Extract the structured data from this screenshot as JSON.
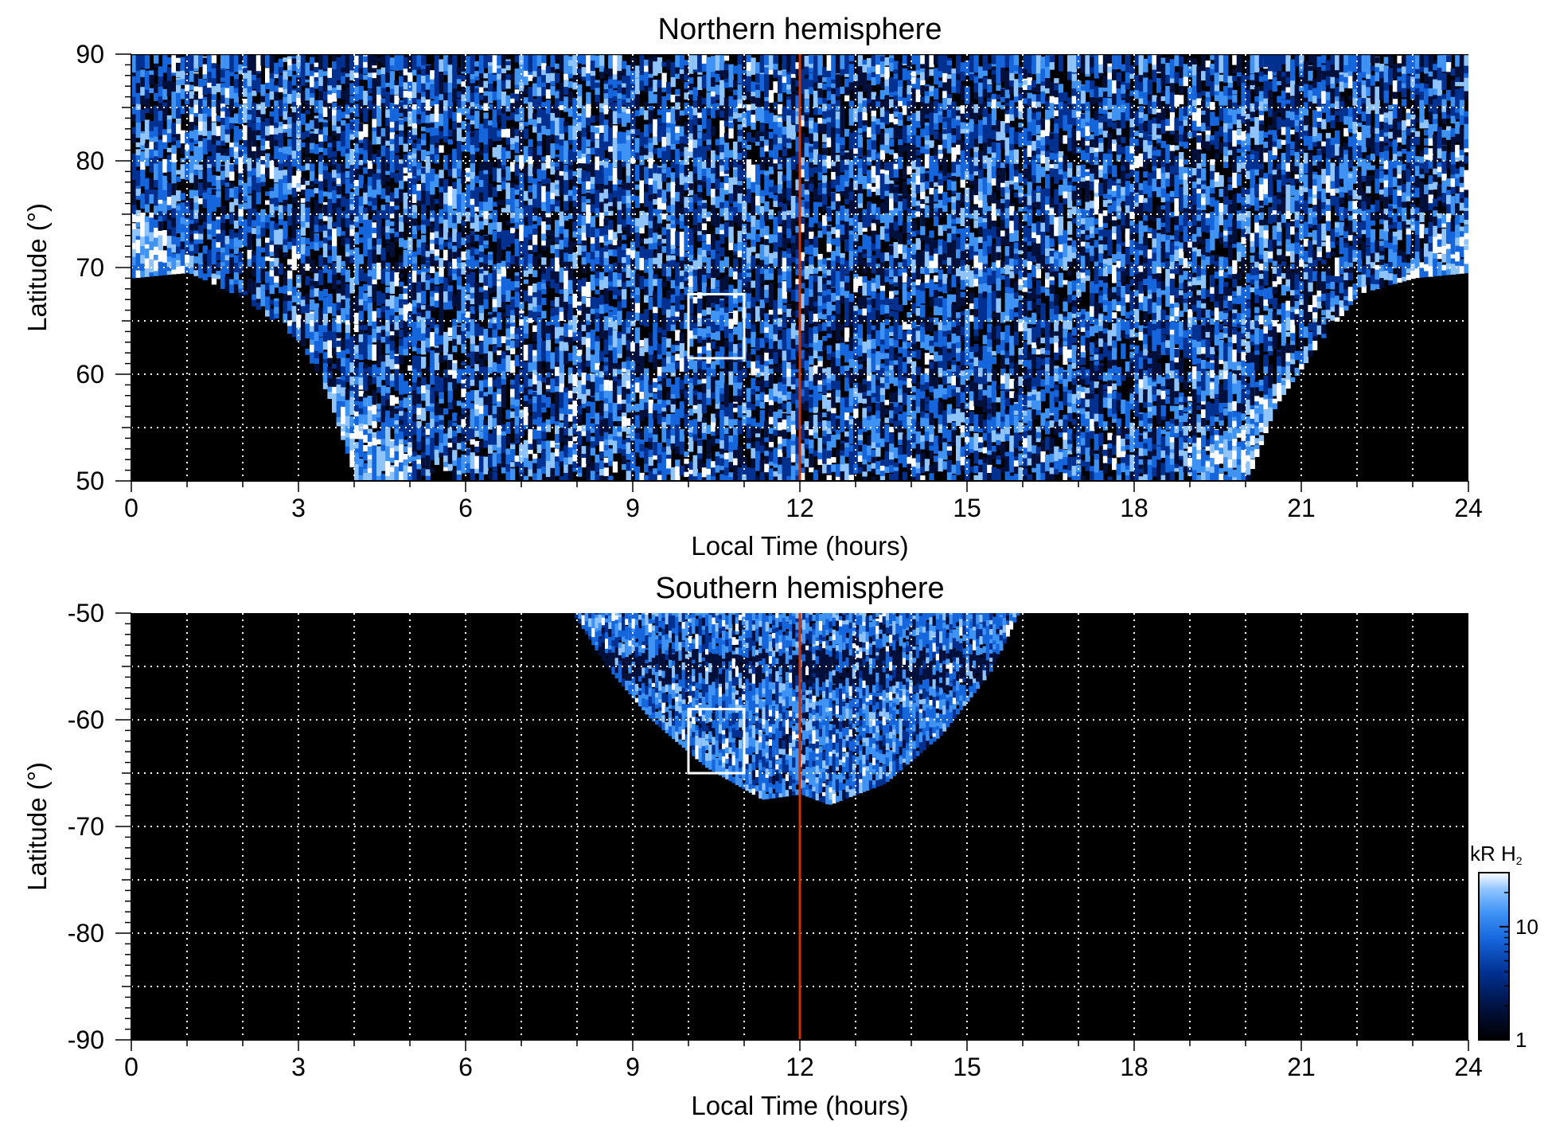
{
  "chart_data": [
    {
      "type": "heatmap",
      "title": "Northern hemisphere",
      "xlabel": "Local Time (hours)",
      "ylabel": "Latitude (°)",
      "xlim": [
        0,
        24
      ],
      "ylim": [
        50,
        90
      ],
      "xticks": [
        "0",
        "3",
        "6",
        "9",
        "12",
        "15",
        "18",
        "21",
        "24"
      ],
      "yticks": [
        "50",
        "60",
        "70",
        "80",
        "90"
      ],
      "grid": true,
      "reference_line": {
        "x": 12,
        "color": "#cc3300"
      },
      "highlight_box": {
        "x": [
          10,
          11
        ],
        "y": [
          61.5,
          67.5
        ]
      },
      "coverage_lower_boundary": [
        [
          0,
          69
        ],
        [
          1,
          69.5
        ],
        [
          2,
          67
        ],
        [
          3,
          63
        ],
        [
          3.5,
          58
        ],
        [
          4,
          50
        ],
        [
          12,
          50
        ],
        [
          20,
          50
        ],
        [
          20.5,
          57
        ],
        [
          21.3,
          63
        ],
        [
          22,
          67.5
        ],
        [
          23,
          69
        ],
        [
          24,
          69.5
        ]
      ],
      "brightest_band": "arc from about 4.5 h at 50° rising through 70–75° near 0 h and 24 h, down to about 19.5 h at 50°"
    },
    {
      "type": "heatmap",
      "title": "Southern hemisphere",
      "xlabel": "Local Time (hours)",
      "ylabel": "Latitude (°)",
      "xlim": [
        0,
        24
      ],
      "ylim": [
        -90,
        -50
      ],
      "xticks": [
        "0",
        "3",
        "6",
        "9",
        "12",
        "15",
        "18",
        "21",
        "24"
      ],
      "yticks": [
        "-90",
        "-80",
        "-70",
        "-60",
        "-50"
      ],
      "grid": true,
      "reference_line": {
        "x": 12,
        "color": "#cc3300"
      },
      "highlight_box": {
        "x": [
          10,
          11
        ],
        "y": [
          -65,
          -59
        ]
      },
      "coverage_boundary": [
        [
          7.9,
          -50
        ],
        [
          8.5,
          -55
        ],
        [
          9.3,
          -60
        ],
        [
          10.3,
          -64.5
        ],
        [
          11.3,
          -67.5
        ],
        [
          12,
          -67
        ],
        [
          12.5,
          -68
        ],
        [
          13.5,
          -66
        ],
        [
          14.5,
          -61.5
        ],
        [
          15.4,
          -55.5
        ],
        [
          15.9,
          -50
        ]
      ]
    }
  ],
  "colorbar": {
    "label": "kR H",
    "label_subscript": "2",
    "scale": "log",
    "range": [
      1,
      30
    ],
    "tick_labels": [
      "1",
      "10"
    ],
    "colors": [
      "#000000",
      "#00103a",
      "#003090",
      "#1565dc",
      "#3f93f5",
      "#8fc4ff",
      "#ffffff"
    ]
  }
}
